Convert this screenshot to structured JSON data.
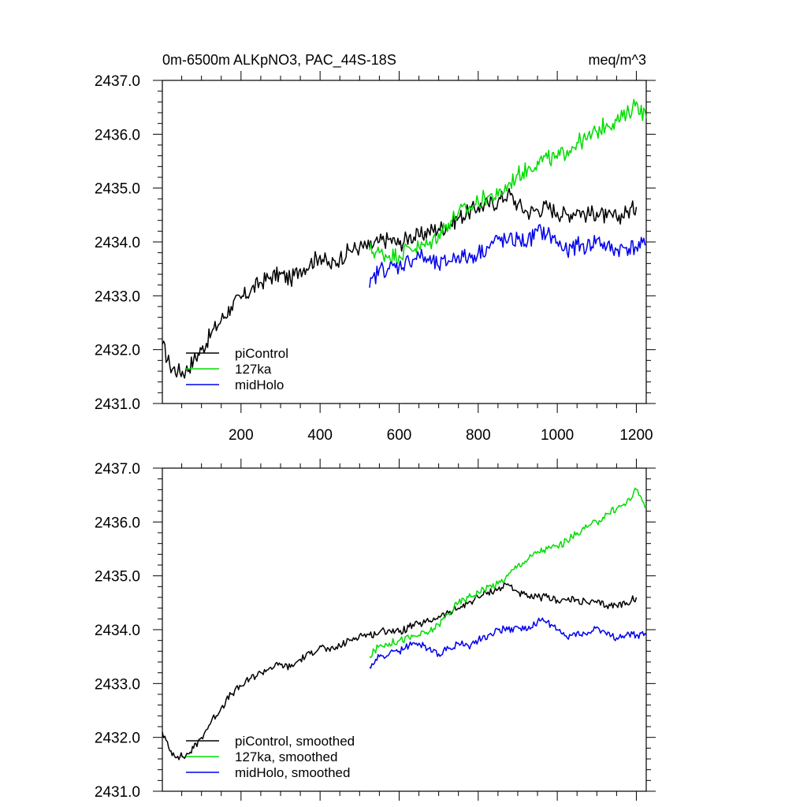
{
  "chart_data": [
    {
      "type": "line",
      "title": "0m-6500m ALKpNO3, PAC_44S-18S",
      "units": "meq/m^3",
      "xlim": [
        1,
        1225
      ],
      "ylim": [
        2431.0,
        2437.0
      ],
      "ytick_labels": [
        "2431.0",
        "2432.0",
        "2433.0",
        "2434.0",
        "2435.0",
        "2436.0",
        "2437.0"
      ],
      "xtick_labels": [
        "200",
        "400",
        "600",
        "800",
        "1000",
        "1200"
      ],
      "legend_position": "bottom-left",
      "series": [
        {
          "name": "piControl",
          "color": "#000000",
          "x": [
            1,
            20,
            40,
            60,
            80,
            100,
            125,
            150,
            175,
            200,
            225,
            250,
            275,
            300,
            325,
            350,
            375,
            400,
            425,
            450,
            475,
            500,
            525,
            550,
            575,
            600,
            625,
            650,
            675,
            700,
            725,
            750,
            775,
            800,
            825,
            850,
            875,
            900,
            925,
            950,
            975,
            1000,
            1025,
            1050,
            1075,
            1100,
            1125,
            1150,
            1175,
            1200
          ],
          "y": [
            2432.1,
            2431.7,
            2431.6,
            2431.6,
            2431.8,
            2432.0,
            2432.3,
            2432.55,
            2432.8,
            2432.95,
            2433.1,
            2433.25,
            2433.35,
            2433.4,
            2433.3,
            2433.5,
            2433.6,
            2433.75,
            2433.55,
            2433.7,
            2433.85,
            2433.9,
            2433.9,
            2434.0,
            2434.05,
            2433.95,
            2434.1,
            2434.1,
            2434.2,
            2434.25,
            2434.3,
            2434.45,
            2434.55,
            2434.65,
            2434.7,
            2434.75,
            2434.9,
            2434.7,
            2434.55,
            2434.6,
            2434.65,
            2434.55,
            2434.5,
            2434.6,
            2434.5,
            2434.55,
            2434.45,
            2434.45,
            2434.55,
            2434.65
          ]
        },
        {
          "name": "127ka",
          "color": "#00dd00",
          "x": [
            525,
            550,
            575,
            600,
            625,
            650,
            675,
            700,
            725,
            750,
            775,
            800,
            825,
            850,
            875,
            900,
            925,
            950,
            975,
            1000,
            1025,
            1050,
            1075,
            1100,
            1125,
            1150,
            1175,
            1200,
            1225
          ],
          "y": [
            2433.85,
            2433.8,
            2433.75,
            2433.75,
            2433.9,
            2433.9,
            2433.95,
            2434.15,
            2434.35,
            2434.55,
            2434.6,
            2434.75,
            2434.85,
            2434.85,
            2435.05,
            2435.25,
            2435.35,
            2435.5,
            2435.55,
            2435.55,
            2435.7,
            2435.85,
            2435.9,
            2436.05,
            2436.2,
            2436.25,
            2436.35,
            2436.6,
            2436.3
          ]
        },
        {
          "name": "midHolo",
          "color": "#0000ee",
          "x": [
            525,
            550,
            575,
            600,
            625,
            650,
            675,
            700,
            725,
            750,
            775,
            800,
            825,
            850,
            875,
            900,
            925,
            950,
            975,
            1000,
            1025,
            1050,
            1075,
            1100,
            1125,
            1150,
            1175,
            1200,
            1225
          ],
          "y": [
            2433.15,
            2433.5,
            2433.5,
            2433.55,
            2433.65,
            2433.75,
            2433.65,
            2433.55,
            2433.65,
            2433.75,
            2433.7,
            2433.8,
            2433.9,
            2434.05,
            2434.0,
            2434.05,
            2434.0,
            2434.2,
            2434.15,
            2434.0,
            2433.8,
            2433.95,
            2433.9,
            2434.05,
            2433.9,
            2433.85,
            2433.9,
            2433.9,
            2433.95
          ]
        }
      ]
    },
    {
      "type": "line",
      "title": "",
      "xlim": [
        1,
        1225
      ],
      "ylim": [
        2431.0,
        2437.0
      ],
      "ytick_labels": [
        "2431.0",
        "2432.0",
        "2433.0",
        "2434.0",
        "2435.0",
        "2436.0",
        "2437.0"
      ],
      "xtick_labels": [],
      "legend_position": "bottom-left",
      "series": [
        {
          "name": "piControl, smoothed",
          "color": "#000000",
          "x": [
            1,
            20,
            40,
            60,
            80,
            100,
            125,
            150,
            175,
            200,
            225,
            250,
            275,
            300,
            325,
            350,
            375,
            400,
            425,
            450,
            475,
            500,
            525,
            550,
            575,
            600,
            625,
            650,
            675,
            700,
            725,
            750,
            775,
            800,
            825,
            850,
            875,
            900,
            925,
            950,
            975,
            1000,
            1025,
            1050,
            1075,
            1100,
            1125,
            1150,
            1175,
            1200
          ],
          "y": [
            2432.1,
            2431.75,
            2431.65,
            2431.65,
            2431.8,
            2432.0,
            2432.3,
            2432.55,
            2432.8,
            2432.95,
            2433.1,
            2433.2,
            2433.3,
            2433.35,
            2433.3,
            2433.45,
            2433.55,
            2433.7,
            2433.6,
            2433.7,
            2433.8,
            2433.9,
            2433.9,
            2433.95,
            2434.0,
            2433.95,
            2434.05,
            2434.1,
            2434.15,
            2434.25,
            2434.3,
            2434.4,
            2434.5,
            2434.6,
            2434.7,
            2434.75,
            2434.85,
            2434.7,
            2434.6,
            2434.6,
            2434.6,
            2434.55,
            2434.55,
            2434.55,
            2434.5,
            2434.5,
            2434.45,
            2434.45,
            2434.5,
            2434.6
          ]
        },
        {
          "name": "127ka, smoothed",
          "color": "#00dd00",
          "x": [
            525,
            550,
            575,
            600,
            625,
            650,
            675,
            700,
            725,
            750,
            775,
            800,
            825,
            850,
            875,
            900,
            925,
            950,
            975,
            1000,
            1025,
            1050,
            1075,
            1100,
            1125,
            1150,
            1175,
            1200,
            1225
          ],
          "y": [
            2433.5,
            2433.7,
            2433.75,
            2433.8,
            2433.85,
            2433.9,
            2433.95,
            2434.1,
            2434.3,
            2434.5,
            2434.6,
            2434.7,
            2434.8,
            2434.85,
            2435.0,
            2435.2,
            2435.3,
            2435.45,
            2435.5,
            2435.55,
            2435.65,
            2435.8,
            2435.9,
            2436.0,
            2436.15,
            2436.25,
            2436.35,
            2436.6,
            2436.3
          ]
        },
        {
          "name": "midHolo, smoothed",
          "color": "#0000ee",
          "x": [
            525,
            550,
            575,
            600,
            625,
            650,
            675,
            700,
            725,
            750,
            775,
            800,
            825,
            850,
            875,
            900,
            925,
            950,
            975,
            1000,
            1025,
            1050,
            1075,
            1100,
            1125,
            1150,
            1175,
            1200,
            1225
          ],
          "y": [
            2433.3,
            2433.5,
            2433.55,
            2433.6,
            2433.7,
            2433.75,
            2433.65,
            2433.55,
            2433.65,
            2433.75,
            2433.7,
            2433.8,
            2433.9,
            2434.0,
            2434.0,
            2434.05,
            2434.0,
            2434.15,
            2434.15,
            2434.0,
            2433.85,
            2433.95,
            2433.9,
            2434.05,
            2433.9,
            2433.85,
            2433.9,
            2433.9,
            2433.9
          ]
        }
      ]
    }
  ]
}
